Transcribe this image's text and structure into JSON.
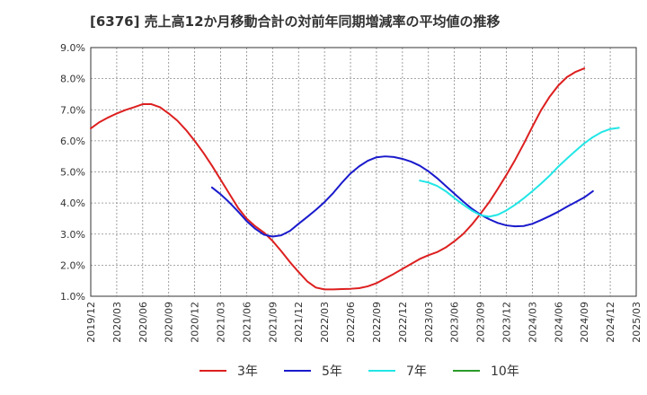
{
  "chart_data": {
    "type": "line",
    "title": "[6376]  売上高12か月移動合計の対前年同期増減率の平均値の推移",
    "xlabel": "",
    "ylabel": "",
    "ylim": [
      1.0,
      9.0
    ],
    "y_ticks": [
      {
        "v": 9.0,
        "label": "9.0%"
      },
      {
        "v": 8.0,
        "label": "8.0%"
      },
      {
        "v": 7.0,
        "label": "7.0%"
      },
      {
        "v": 6.0,
        "label": "6.0%"
      },
      {
        "v": 5.0,
        "label": "5.0%"
      },
      {
        "v": 4.0,
        "label": "4.0%"
      },
      {
        "v": 3.0,
        "label": "3.0%"
      },
      {
        "v": 2.0,
        "label": "2.0%"
      },
      {
        "v": 1.0,
        "label": "1.0%"
      }
    ],
    "x_ticks": [
      {
        "m": 0,
        "label": "2019/12"
      },
      {
        "m": 3,
        "label": "2020/03"
      },
      {
        "m": 6,
        "label": "2020/06"
      },
      {
        "m": 9,
        "label": "2020/09"
      },
      {
        "m": 12,
        "label": "2020/12"
      },
      {
        "m": 15,
        "label": "2021/03"
      },
      {
        "m": 18,
        "label": "2021/06"
      },
      {
        "m": 21,
        "label": "2021/09"
      },
      {
        "m": 24,
        "label": "2021/12"
      },
      {
        "m": 27,
        "label": "2022/03"
      },
      {
        "m": 30,
        "label": "2022/06"
      },
      {
        "m": 33,
        "label": "2022/09"
      },
      {
        "m": 36,
        "label": "2022/12"
      },
      {
        "m": 39,
        "label": "2023/03"
      },
      {
        "m": 42,
        "label": "2023/06"
      },
      {
        "m": 45,
        "label": "2023/09"
      },
      {
        "m": 48,
        "label": "2023/12"
      },
      {
        "m": 51,
        "label": "2024/03"
      },
      {
        "m": 54,
        "label": "2024/06"
      },
      {
        "m": 57,
        "label": "2024/09"
      },
      {
        "m": 60,
        "label": "2024/12"
      },
      {
        "m": 63,
        "label": "2025/03"
      }
    ],
    "x_range_months": [
      0,
      63
    ],
    "grid": true,
    "legend_position": "bottom",
    "series": [
      {
        "name": "3年",
        "color": "#dd1f1f",
        "start_month": 0,
        "values": [
          6.4,
          6.6,
          6.75,
          6.88,
          6.99,
          7.08,
          7.18,
          7.18,
          7.08,
          6.88,
          6.65,
          6.35,
          6.0,
          5.62,
          5.2,
          4.75,
          4.3,
          3.85,
          3.5,
          3.25,
          3.05,
          2.78,
          2.45,
          2.1,
          1.78,
          1.48,
          1.28,
          1.22,
          1.22,
          1.23,
          1.24,
          1.26,
          1.32,
          1.42,
          1.57,
          1.72,
          1.88,
          2.04,
          2.2,
          2.32,
          2.42,
          2.57,
          2.77,
          3.0,
          3.3,
          3.65,
          4.02,
          4.45,
          4.9,
          5.38,
          5.9,
          6.45,
          6.98,
          7.42,
          7.78,
          8.05,
          8.22,
          8.33
        ]
      },
      {
        "name": "5年",
        "color": "#1a1acc",
        "start_month": 14,
        "values": [
          4.5,
          4.28,
          4.02,
          3.73,
          3.42,
          3.17,
          2.98,
          2.92,
          2.96,
          3.1,
          3.33,
          3.55,
          3.78,
          4.03,
          4.32,
          4.65,
          4.95,
          5.18,
          5.36,
          5.47,
          5.5,
          5.48,
          5.42,
          5.33,
          5.2,
          5.02,
          4.8,
          4.55,
          4.3,
          4.05,
          3.82,
          3.63,
          3.48,
          3.36,
          3.28,
          3.25,
          3.26,
          3.33,
          3.45,
          3.58,
          3.72,
          3.88,
          4.03,
          4.18,
          4.38
        ]
      },
      {
        "name": "7年",
        "color": "#22e6e6",
        "start_month": 38,
        "values": [
          4.72,
          4.66,
          4.55,
          4.38,
          4.16,
          3.95,
          3.76,
          3.61,
          3.56,
          3.62,
          3.76,
          3.94,
          4.15,
          4.38,
          4.62,
          4.88,
          5.17,
          5.43,
          5.68,
          5.92,
          6.12,
          6.28,
          6.38,
          6.42
        ]
      },
      {
        "name": "10年",
        "color": "#2a9a2a",
        "start_month": null,
        "values": []
      }
    ]
  }
}
